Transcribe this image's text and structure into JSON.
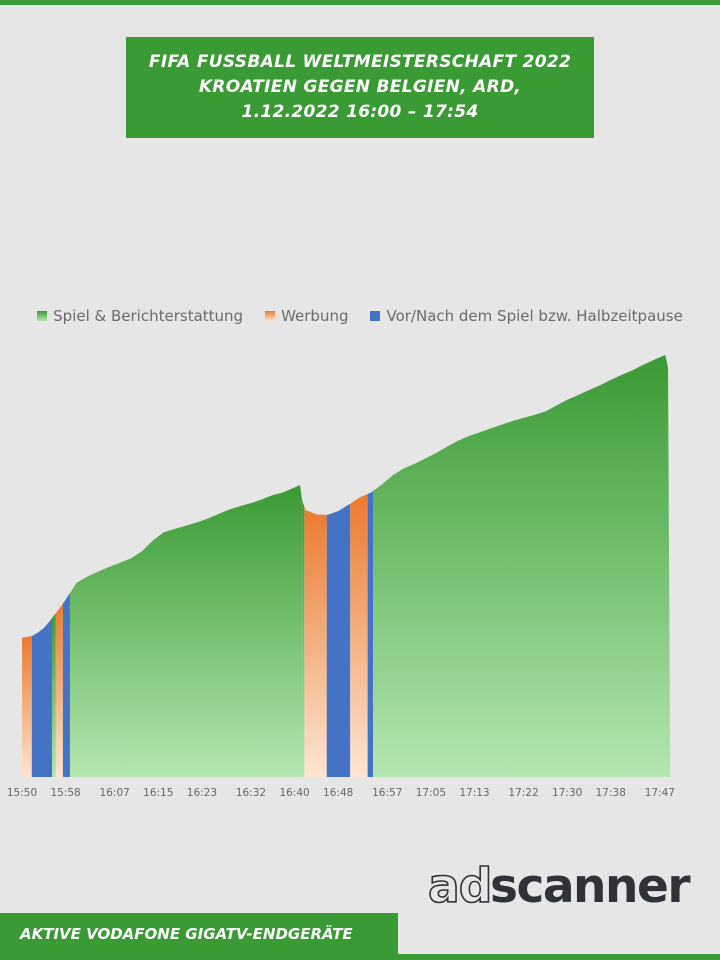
{
  "header": {
    "title_line1": "FIFA FUSSBALL WELTMEISTERSCHAFT 2022",
    "title_line2": "KROATIEN GEGEN BELGIEN, ARD,",
    "title_line3": "1.12.2022  16:00 – 17:54"
  },
  "footer": {
    "label": "AKTIVE VODAFONE GIGATV-ENDGERÄTE"
  },
  "logo": {
    "text_ad": "ad",
    "text_scanner": "scanner"
  },
  "colors": {
    "brand_green": "#3a9a33",
    "game_top": "#3a9a33",
    "game_bottom": "#b3e6b0",
    "ad_top": "#ea7a2e",
    "ad_bottom": "#fde5d3",
    "pause": "#4472c4"
  },
  "chart_data": {
    "type": "area",
    "title": "FIFA FUSSBALL WELTMEISTERSCHAFT 2022 KROATIEN GEGEN BELGIEN, ARD, 1.12.2022 16:00 – 17:54",
    "x_ticks": [
      "15:50",
      "15:58",
      "16:07",
      "16:15",
      "16:23",
      "16:32",
      "16:40",
      "16:48",
      "16:57",
      "17:05",
      "17:13",
      "17:22",
      "17:30",
      "17:38",
      "17:47"
    ],
    "x_start_minutes": 950,
    "x_end_minutes": 1074,
    "legend": [
      {
        "name": "Spiel & Berichterstattung",
        "key": "game"
      },
      {
        "name": "Werbung",
        "key": "ad"
      },
      {
        "name": "Vor/Nach dem Spiel bzw. Halbzeitpause",
        "key": "pause"
      }
    ],
    "legend_position": "top",
    "grid": false,
    "y_axis_visible": false,
    "y_range": [
      0,
      100
    ],
    "series_points": [
      [
        950.0,
        33.0
      ],
      [
        951.0,
        33.2
      ],
      [
        952.0,
        33.5
      ],
      [
        953.0,
        34.3
      ],
      [
        954.0,
        35.3
      ],
      [
        955.0,
        36.8
      ],
      [
        956.0,
        38.5
      ],
      [
        957.0,
        40.2
      ],
      [
        958.0,
        42.0
      ],
      [
        959.0,
        44.0
      ],
      [
        960.0,
        46.0
      ],
      [
        962.0,
        47.5
      ],
      [
        964.0,
        48.7
      ],
      [
        966.0,
        49.8
      ],
      [
        968.0,
        50.8
      ],
      [
        970.0,
        51.8
      ],
      [
        972.0,
        53.5
      ],
      [
        974.0,
        56.0
      ],
      [
        976.0,
        58.0
      ],
      [
        978.0,
        58.8
      ],
      [
        980.0,
        59.5
      ],
      [
        982.0,
        60.3
      ],
      [
        984.0,
        61.2
      ],
      [
        986.0,
        62.3
      ],
      [
        988.0,
        63.4
      ],
      [
        990.0,
        64.2
      ],
      [
        992.0,
        64.9
      ],
      [
        994.0,
        65.8
      ],
      [
        996.0,
        66.8
      ],
      [
        998.0,
        67.5
      ],
      [
        1000.0,
        68.6
      ],
      [
        1001.0,
        69.2
      ],
      [
        1001.4,
        65.5
      ],
      [
        1002.0,
        63.3
      ],
      [
        1004.0,
        62.2
      ],
      [
        1006.0,
        62.1
      ],
      [
        1008.0,
        63.0
      ],
      [
        1010.0,
        64.6
      ],
      [
        1012.0,
        66.3
      ],
      [
        1014.0,
        67.4
      ],
      [
        1016.0,
        69.3
      ],
      [
        1018.0,
        71.5
      ],
      [
        1020.0,
        73.1
      ],
      [
        1022.0,
        74.2
      ],
      [
        1024.0,
        75.5
      ],
      [
        1026.0,
        76.8
      ],
      [
        1028.0,
        78.3
      ],
      [
        1030.0,
        79.7
      ],
      [
        1032.0,
        80.8
      ],
      [
        1034.0,
        81.7
      ],
      [
        1036.0,
        82.6
      ],
      [
        1038.0,
        83.5
      ],
      [
        1040.0,
        84.4
      ],
      [
        1042.0,
        85.1
      ],
      [
        1044.0,
        85.8
      ],
      [
        1046.0,
        86.6
      ],
      [
        1048.0,
        88.0
      ],
      [
        1050.0,
        89.4
      ],
      [
        1052.0,
        90.5
      ],
      [
        1054.0,
        91.7
      ],
      [
        1056.0,
        92.8
      ],
      [
        1058.0,
        94.1
      ],
      [
        1060.0,
        95.3
      ],
      [
        1062.0,
        96.4
      ],
      [
        1064.0,
        97.7
      ],
      [
        1066.0,
        98.9
      ],
      [
        1068.0,
        100.0
      ],
      [
        1068.5,
        97.0
      ],
      [
        1068.9,
        0.0
      ]
    ],
    "segments": [
      {
        "category": "ad",
        "start": 950.0,
        "end": 951.8
      },
      {
        "category": "pause",
        "start": 951.8,
        "end": 955.5
      },
      {
        "category": "game",
        "start": 955.5,
        "end": 956.2
      },
      {
        "category": "ad",
        "start": 956.2,
        "end": 957.5
      },
      {
        "category": "pause",
        "start": 957.5,
        "end": 958.8
      },
      {
        "category": "game",
        "start": 958.8,
        "end": 1001.4
      },
      {
        "category": "game",
        "start": 1001.4,
        "end": 1001.8
      },
      {
        "category": "ad",
        "start": 1001.8,
        "end": 1005.9
      },
      {
        "category": "pause",
        "start": 1005.9,
        "end": 1010.2
      },
      {
        "category": "ad",
        "start": 1010.2,
        "end": 1013.4
      },
      {
        "category": "pause",
        "start": 1013.4,
        "end": 1014.4
      },
      {
        "category": "game",
        "start": 1014.4,
        "end": 1068.9
      }
    ]
  }
}
